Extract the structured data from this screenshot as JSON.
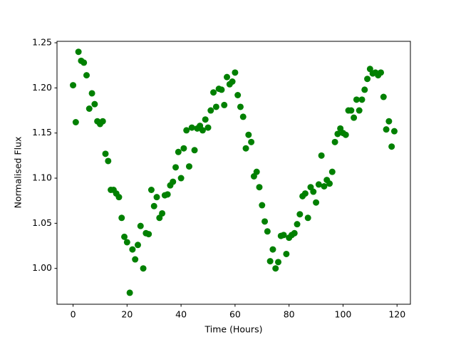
{
  "chart_data": {
    "type": "scatter",
    "x_label": "Time (Hours)",
    "y_label": "Normalised Flux",
    "x": [
      0,
      1,
      2,
      3,
      4,
      5,
      6,
      7,
      8,
      9,
      10,
      11,
      12,
      13,
      14,
      15,
      16,
      17,
      18,
      19,
      20,
      21,
      22,
      23,
      24,
      25,
      26,
      27,
      28,
      29,
      30,
      31,
      32,
      33,
      34,
      35,
      36,
      37,
      38,
      39,
      40,
      41,
      42,
      43,
      44,
      45,
      46,
      47,
      48,
      49,
      50,
      51,
      52,
      53,
      54,
      55,
      56,
      57,
      58,
      59,
      60,
      61,
      62,
      63,
      64,
      65,
      66,
      67,
      68,
      69,
      70,
      71,
      72,
      73,
      74,
      75,
      76,
      77,
      78,
      79,
      80,
      81,
      82,
      83,
      84,
      85,
      86,
      87,
      88,
      89,
      90,
      91,
      92,
      93,
      94,
      95,
      96,
      97,
      98,
      99,
      100,
      101,
      102,
      103,
      104,
      105,
      106,
      107,
      108,
      109,
      110,
      111,
      112,
      113,
      114,
      115,
      116,
      117,
      118,
      119
    ],
    "values": [
      1.203,
      1.162,
      1.24,
      1.23,
      1.228,
      1.214,
      1.177,
      1.194,
      1.182,
      1.163,
      1.16,
      1.163,
      1.127,
      1.119,
      1.087,
      1.087,
      1.083,
      1.079,
      1.056,
      1.035,
      1.029,
      0.973,
      1.021,
      1.01,
      1.026,
      1.047,
      1.0,
      1.039,
      1.038,
      1.087,
      1.069,
      1.079,
      1.056,
      1.061,
      1.081,
      1.082,
      1.092,
      1.096,
      1.112,
      1.129,
      1.1,
      1.133,
      1.153,
      1.113,
      1.156,
      1.131,
      1.155,
      1.158,
      1.153,
      1.165,
      1.156,
      1.175,
      1.195,
      1.179,
      1.199,
      1.198,
      1.181,
      1.212,
      1.204,
      1.207,
      1.217,
      1.192,
      1.179,
      1.168,
      1.133,
      1.148,
      1.14,
      1.102,
      1.107,
      1.09,
      1.07,
      1.052,
      1.041,
      1.008,
      1.021,
      1.0,
      1.007,
      1.036,
      1.037,
      1.016,
      1.034,
      1.037,
      1.039,
      1.049,
      1.06,
      1.08,
      1.083,
      1.056,
      1.09,
      1.085,
      1.073,
      1.093,
      1.125,
      1.091,
      1.098,
      1.094,
      1.107,
      1.14,
      1.149,
      1.155,
      1.15,
      1.148,
      1.175,
      1.175,
      1.167,
      1.187,
      1.175,
      1.187,
      1.198,
      1.21,
      1.221,
      1.216,
      1.217,
      1.214,
      1.217,
      1.19,
      1.154,
      1.163,
      1.135,
      1.152
    ],
    "color": "#008000",
    "xlim": [
      -5.95,
      124.95
    ],
    "xticks": [
      0,
      20,
      40,
      60,
      80,
      100,
      120
    ],
    "ylim": [
      0.9603,
      1.2516
    ],
    "yticks": [
      {
        "value": 1.0,
        "label": "1.00"
      },
      1.05,
      {
        "value": 1.1,
        "label": "1.10"
      },
      1.15,
      {
        "value": 1.2,
        "label": "1.20"
      },
      1.25
    ],
    "grid": false
  }
}
